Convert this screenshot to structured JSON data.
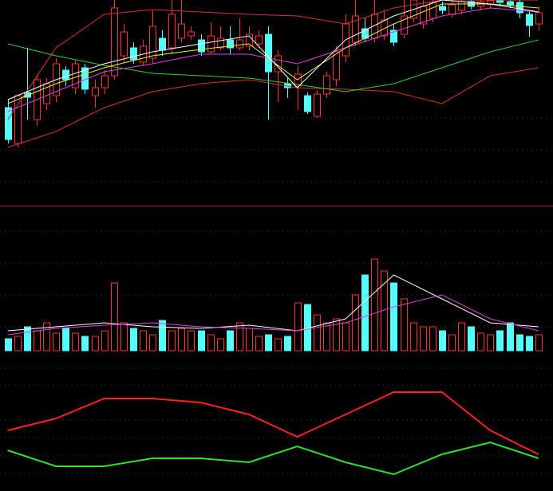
{
  "chart_data": [
    {
      "type": "candlestick",
      "xlim": [
        -0.8,
        56.5
      ],
      "ylim": [
        0,
        258
      ],
      "up_color": "#ff3030",
      "down_color": "#54fcfc",
      "open": [
        123,
        78,
        142,
        108,
        128,
        138,
        170,
        148,
        173,
        138,
        148,
        163,
        188,
        198,
        180,
        185,
        210,
        198,
        210,
        213,
        208,
        193,
        198,
        208,
        198,
        200,
        203,
        215,
        168,
        153,
        150,
        138,
        112,
        140,
        158,
        188,
        205,
        222,
        210,
        213,
        220,
        215,
        235,
        228,
        235,
        250,
        240,
        245,
        256,
        250,
        252,
        258,
        256,
        255,
        240,
        228
      ],
      "close": [
        83,
        138,
        136,
        158,
        153,
        178,
        158,
        178,
        146,
        148,
        163,
        248,
        218,
        183,
        200,
        225,
        195,
        240,
        228,
        218,
        193,
        213,
        210,
        198,
        208,
        215,
        213,
        168,
        188,
        148,
        165,
        118,
        140,
        163,
        193,
        228,
        238,
        210,
        240,
        233,
        205,
        238,
        258,
        250,
        255,
        245,
        252,
        256,
        250,
        256,
        257,
        255,
        252,
        242,
        226,
        242
      ],
      "high": [
        133,
        140,
        198,
        165,
        160,
        185,
        175,
        182,
        178,
        158,
        170,
        258,
        228,
        205,
        208,
        245,
        220,
        258,
        258,
        225,
        215,
        230,
        225,
        225,
        235,
        225,
        220,
        225,
        195,
        160,
        175,
        142,
        145,
        168,
        200,
        240,
        258,
        235,
        258,
        245,
        228,
        258,
        258,
        258,
        258,
        256,
        258,
        258,
        258,
        258,
        258,
        258,
        258,
        258,
        245,
        250
      ],
      "low": [
        78,
        73,
        108,
        100,
        120,
        130,
        150,
        140,
        140,
        123,
        140,
        158,
        180,
        178,
        175,
        178,
        188,
        190,
        205,
        208,
        188,
        190,
        195,
        190,
        195,
        195,
        198,
        108,
        130,
        135,
        120,
        115,
        110,
        135,
        150,
        180,
        200,
        205,
        205,
        208,
        200,
        210,
        230,
        222,
        230,
        240,
        236,
        240,
        246,
        245,
        248,
        250,
        248,
        235,
        212,
        220
      ],
      "lines": [
        {
          "color": "#e03030",
          "x": [
            0,
            5,
            10,
            15,
            20,
            25,
            30,
            35,
            40,
            45,
            50,
            55
          ],
          "values": [
            108,
            198,
            240,
            246,
            243,
            240,
            238,
            228,
            248,
            258,
            258,
            258
          ]
        },
        {
          "color": "#e03030",
          "x": [
            0,
            5,
            10,
            15,
            20,
            25,
            30,
            35,
            40,
            45,
            50,
            55
          ],
          "values": [
            73,
            93,
            123,
            143,
            153,
            158,
            148,
            146,
            143,
            128,
            163,
            173
          ]
        },
        {
          "color": "#30d030",
          "x": [
            0,
            5,
            10,
            15,
            20,
            25,
            30,
            35,
            40,
            45,
            50,
            55
          ],
          "values": [
            203,
            188,
            176,
            166,
            163,
            160,
            152,
            143,
            153,
            173,
            193,
            208
          ]
        },
        {
          "color": "#e040e0",
          "x": [
            0,
            5,
            10,
            15,
            20,
            25,
            30,
            35,
            40,
            45,
            50,
            55
          ],
          "values": [
            118,
            143,
            168,
            178,
            190,
            190,
            178,
            198,
            218,
            238,
            248,
            243
          ]
        },
        {
          "color": "#f0f040",
          "x": [
            0,
            5,
            10,
            15,
            20,
            25,
            30,
            35,
            40,
            45,
            50,
            55
          ],
          "values": [
            128,
            153,
            173,
            188,
            196,
            203,
            158,
            198,
            228,
            253,
            253,
            248
          ]
        },
        {
          "color": "#ffffff",
          "x": [
            0,
            5,
            10,
            15,
            20,
            25,
            30,
            35,
            40,
            45,
            50,
            55
          ],
          "values": [
            133,
            158,
            178,
            193,
            203,
            213,
            148,
            208,
            238,
            258,
            253,
            243
          ]
        }
      ]
    },
    {
      "type": "volume",
      "xlim": [
        -0.8,
        56.5
      ],
      "ylim": [
        0,
        190
      ],
      "values": [
        15,
        18,
        30,
        25,
        35,
        22,
        28,
        22,
        18,
        18,
        25,
        85,
        35,
        28,
        25,
        20,
        38,
        25,
        28,
        25,
        25,
        20,
        15,
        25,
        35,
        28,
        18,
        20,
        15,
        18,
        60,
        58,
        45,
        35,
        40,
        35,
        70,
        95,
        115,
        100,
        85,
        65,
        35,
        30,
        30,
        25,
        20,
        35,
        30,
        22,
        20,
        25,
        35,
        20,
        18,
        20
      ],
      "lines": [
        {
          "color": "#ffffff",
          "x": [
            0,
            5,
            10,
            15,
            20,
            25,
            30,
            35,
            40,
            45,
            50,
            55
          ],
          "values": [
            25,
            30,
            35,
            30,
            28,
            32,
            25,
            40,
            95,
            65,
            35,
            30
          ]
        },
        {
          "color": "#e040e0",
          "x": [
            0,
            5,
            10,
            15,
            20,
            25,
            30,
            35,
            40,
            45,
            50,
            55
          ],
          "values": [
            20,
            28,
            32,
            35,
            30,
            28,
            25,
            35,
            55,
            70,
            40,
            25
          ]
        }
      ]
    },
    {
      "type": "line",
      "xlim": [
        -0.8,
        56.5
      ],
      "ylim": [
        0,
        166
      ],
      "lines": [
        {
          "color": "#ff2020",
          "x": [
            0,
            5,
            10,
            15,
            20,
            25,
            30,
            35,
            40,
            45,
            50,
            55
          ],
          "values": [
            76,
            91,
            116,
            116,
            111,
            96,
            68,
            96,
            124,
            124,
            76,
            46
          ]
        },
        {
          "color": "#30e030",
          "x": [
            0,
            5,
            10,
            15,
            20,
            25,
            30,
            35,
            40,
            45,
            50,
            55
          ],
          "values": [
            51,
            31,
            31,
            41,
            41,
            36,
            56,
            36,
            21,
            46,
            61,
            41
          ]
        }
      ]
    }
  ]
}
